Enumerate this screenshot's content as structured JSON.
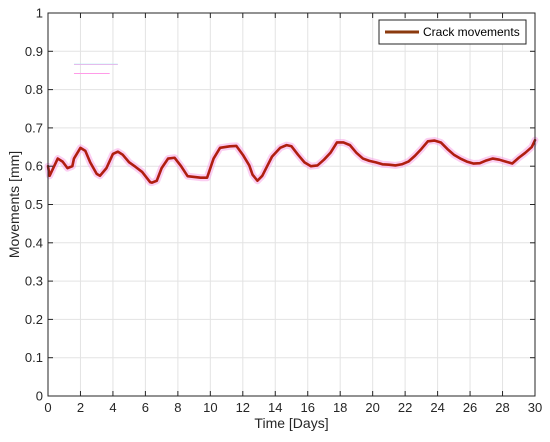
{
  "chart_data": {
    "type": "line",
    "title": "",
    "xlabel": "Time [Days]",
    "ylabel": "Movements [mm]",
    "xlim": [
      0,
      30
    ],
    "ylim": [
      0,
      1
    ],
    "x_ticks": [
      0,
      2,
      4,
      6,
      8,
      10,
      12,
      14,
      16,
      18,
      20,
      22,
      24,
      26,
      28,
      30
    ],
    "x_tick_labels": [
      "0",
      "2",
      "4",
      "6",
      "8",
      "10",
      "12",
      "14",
      "16",
      "18",
      "20",
      "22",
      "24",
      "26",
      "28",
      "30"
    ],
    "y_ticks": [
      0,
      0.1,
      0.2,
      0.3,
      0.4,
      0.5,
      0.6,
      0.7,
      0.8,
      0.9,
      1
    ],
    "y_tick_labels": [
      "0",
      "0.1",
      "0.2",
      "0.3",
      "0.4",
      "0.5",
      "0.6",
      "0.7",
      "0.8",
      "0.9",
      "1"
    ],
    "grid": true,
    "legend_position": "top-right",
    "colors": {
      "line": "#b01e10",
      "halo": "#f7a6e8",
      "grid": "#e3e3e3",
      "axis": "#262626",
      "legend_line": "#8b3a0e",
      "faint_marks": [
        "#ff9be8",
        "#9ef0f0"
      ]
    },
    "series": [
      {
        "name": "Crack movements",
        "x": [
          0,
          0.1,
          0.6,
          0.9,
          1.2,
          1.5,
          1.6,
          2.0,
          2.3,
          2.6,
          3.0,
          3.2,
          3.6,
          4.0,
          4.3,
          4.6,
          5.0,
          5.4,
          5.8,
          6.3,
          6.4,
          6.7,
          7.0,
          7.4,
          7.8,
          8.2,
          8.6,
          9.0,
          9.4,
          9.8,
          10.2,
          10.6,
          11.2,
          11.6,
          12.0,
          12.4,
          12.6,
          12.9,
          13.2,
          13.5,
          13.8,
          14.3,
          14.7,
          15.0,
          15.4,
          15.8,
          16.2,
          16.6,
          17.0,
          17.4,
          17.8,
          18.2,
          18.6,
          19.0,
          19.4,
          19.8,
          20.2,
          20.6,
          21.0,
          21.4,
          21.8,
          22.2,
          22.6,
          23.0,
          23.4,
          23.8,
          24.2,
          24.6,
          25.0,
          25.4,
          25.8,
          26.2,
          26.6,
          27.0,
          27.4,
          27.8,
          28.2,
          28.6,
          29.0,
          29.4,
          29.8,
          30
        ],
        "y": [
          0.6,
          0.575,
          0.62,
          0.612,
          0.595,
          0.6,
          0.62,
          0.648,
          0.64,
          0.61,
          0.58,
          0.575,
          0.595,
          0.632,
          0.638,
          0.63,
          0.61,
          0.598,
          0.585,
          0.558,
          0.557,
          0.562,
          0.595,
          0.62,
          0.622,
          0.6,
          0.574,
          0.572,
          0.57,
          0.57,
          0.62,
          0.648,
          0.652,
          0.653,
          0.63,
          0.602,
          0.578,
          0.562,
          0.575,
          0.6,
          0.625,
          0.648,
          0.655,
          0.652,
          0.63,
          0.61,
          0.6,
          0.602,
          0.617,
          0.635,
          0.662,
          0.662,
          0.655,
          0.635,
          0.62,
          0.614,
          0.61,
          0.605,
          0.604,
          0.602,
          0.605,
          0.612,
          0.627,
          0.645,
          0.665,
          0.667,
          0.662,
          0.645,
          0.63,
          0.62,
          0.612,
          0.607,
          0.608,
          0.615,
          0.62,
          0.617,
          0.612,
          0.607,
          0.622,
          0.635,
          0.65,
          0.668
        ]
      }
    ]
  }
}
